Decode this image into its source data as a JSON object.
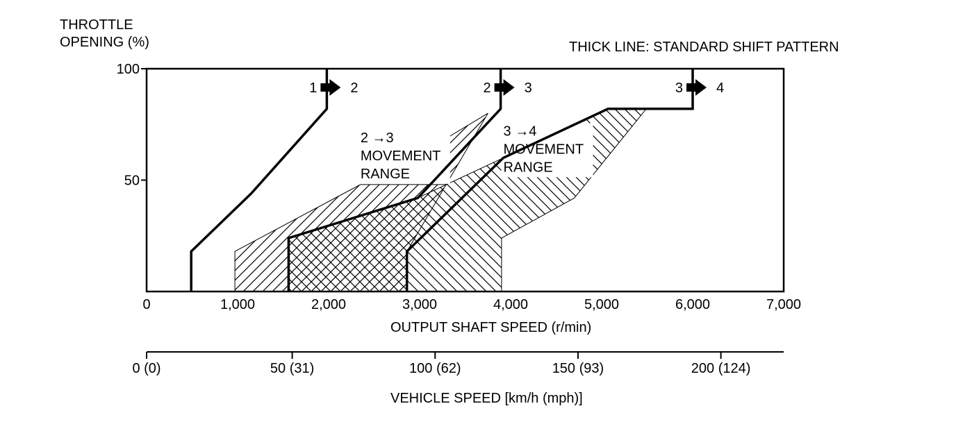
{
  "chart_data": {
    "type": "line",
    "ylabel_lines": [
      "THROTTLE",
      "OPENING (%)"
    ],
    "note": "THICK LINE: STANDARD SHIFT PATTERN",
    "xlabel": "OUTPUT SHAFT SPEED (r/min)",
    "xlim": [
      0,
      7000
    ],
    "ylim": [
      0,
      100
    ],
    "x_ticks": [
      {
        "value": 0,
        "label": "0"
      },
      {
        "value": 1000,
        "label": "1,000"
      },
      {
        "value": 2000,
        "label": "2,000"
      },
      {
        "value": 3000,
        "label": "3,000"
      },
      {
        "value": 4000,
        "label": "4,000"
      },
      {
        "value": 5000,
        "label": "5,000"
      },
      {
        "value": 6000,
        "label": "6,000"
      },
      {
        "value": 7000,
        "label": "7,000"
      }
    ],
    "y_ticks": [
      {
        "value": 50,
        "label": "50"
      },
      {
        "value": 100,
        "label": "100"
      }
    ],
    "secondary_axis": {
      "label": "VEHICLE SPEED [km/h (mph)]",
      "ticks": [
        {
          "shaft_speed": 0,
          "label": "0 (0)"
        },
        {
          "shaft_speed": 1600,
          "label": "50 (31)"
        },
        {
          "shaft_speed": 3170,
          "label": "100 (62)"
        },
        {
          "shaft_speed": 4740,
          "label": "150 (93)"
        },
        {
          "shaft_speed": 6310,
          "label": "200 (124)"
        }
      ]
    },
    "series": [
      {
        "name": "1 → 2",
        "from": "1",
        "to": "2",
        "points": [
          [
            490,
            0
          ],
          [
            490,
            18
          ],
          [
            1150,
            44
          ],
          [
            1980,
            82
          ],
          [
            1980,
            100
          ]
        ]
      },
      {
        "name": "2 → 3",
        "from": "2",
        "to": "3",
        "points": [
          [
            1560,
            0
          ],
          [
            1560,
            24
          ],
          [
            2980,
            42
          ],
          [
            3890,
            82
          ],
          [
            3890,
            100
          ]
        ]
      },
      {
        "name": "3 → 4",
        "from": "3",
        "to": "4",
        "points": [
          [
            2860,
            0
          ],
          [
            2860,
            18
          ],
          [
            3920,
            60
          ],
          [
            5070,
            82
          ],
          [
            6000,
            82
          ],
          [
            6000,
            100
          ]
        ]
      }
    ],
    "ranges": [
      {
        "label_lines": [
          "2 →3",
          "MOVEMENT",
          "RANGE"
        ],
        "polygon": [
          [
            970,
            0
          ],
          [
            970,
            18
          ],
          [
            2350,
            48
          ],
          [
            3290,
            48
          ],
          [
            3140,
            65
          ],
          [
            3750,
            80
          ],
          [
            2860,
            18
          ],
          [
            2860,
            0
          ]
        ]
      },
      {
        "label_lines": [
          "3 →4",
          "MOVEMENT",
          "RANGE"
        ],
        "polygon": [
          [
            1560,
            0
          ],
          [
            1560,
            24
          ],
          [
            2980,
            42
          ],
          [
            3920,
            60
          ],
          [
            5070,
            82
          ],
          [
            5490,
            82
          ],
          [
            4700,
            42
          ],
          [
            3900,
            24
          ],
          [
            3900,
            0
          ]
        ]
      }
    ],
    "grid": false,
    "colors": {
      "line": "#000000",
      "background": "#ffffff"
    }
  }
}
